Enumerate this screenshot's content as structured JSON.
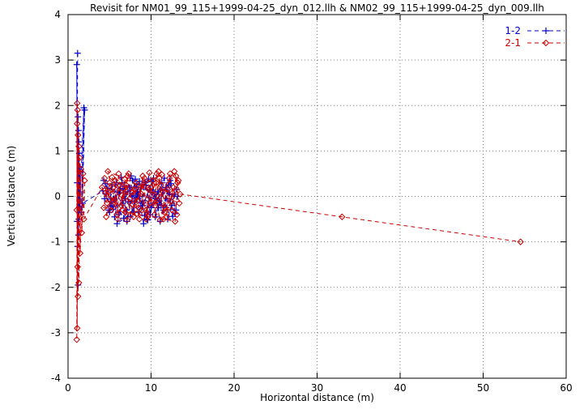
{
  "chart_data": {
    "type": "scatter",
    "title": "Revisit for NM01_99_115+1999-04-25_dyn_012.llh & NM02_99_115+1999-04-25_dyn_009.llh",
    "xlabel": "Horizontal distance (m)",
    "ylabel": "Vertical distance (m)",
    "xlim": [
      0,
      60
    ],
    "ylim": [
      -4,
      4
    ],
    "xticks": [
      0,
      10,
      20,
      30,
      40,
      50,
      60
    ],
    "yticks": [
      -4,
      -3,
      -2,
      -1,
      0,
      1,
      2,
      3,
      4
    ],
    "grid": true,
    "legend_position": "top-right",
    "series": [
      {
        "name": "1-2",
        "color": "#0000cc",
        "marker": "plus",
        "linestyle": "dashed",
        "points": [
          [
            1.15,
            3.15
          ],
          [
            1.1,
            0.3
          ],
          [
            1.05,
            2.9
          ],
          [
            1.1,
            -0.55
          ],
          [
            1.2,
            1.75
          ],
          [
            1.15,
            -1.1
          ],
          [
            1.25,
            1.45
          ],
          [
            1.2,
            -1.95
          ],
          [
            1.3,
            1.2
          ],
          [
            1.25,
            -0.85
          ],
          [
            1.35,
            0.95
          ],
          [
            1.3,
            -0.5
          ],
          [
            1.45,
            0.65
          ],
          [
            1.4,
            -0.3
          ],
          [
            1.9,
            1.95
          ],
          [
            1.6,
            -0.35
          ],
          [
            2.0,
            1.9
          ],
          [
            1.75,
            -0.15
          ],
          [
            4.2,
            0.12
          ],
          [
            5.1,
            -0.22
          ],
          [
            4.6,
            0.05
          ],
          [
            5.8,
            0.3
          ],
          [
            5.0,
            -0.35
          ],
          [
            6.3,
            0.18
          ],
          [
            5.5,
            -0.05
          ],
          [
            6.8,
            0.22
          ],
          [
            6.1,
            -0.4
          ],
          [
            7.2,
            0.1
          ],
          [
            6.6,
            -0.15
          ],
          [
            7.8,
            0.35
          ],
          [
            7.0,
            -0.3
          ],
          [
            8.2,
            0.05
          ],
          [
            7.5,
            -0.45
          ],
          [
            8.8,
            0.2
          ],
          [
            8.0,
            -0.1
          ],
          [
            9.3,
            0.3
          ],
          [
            8.5,
            -0.35
          ],
          [
            9.8,
            0.15
          ],
          [
            9.0,
            -0.2
          ],
          [
            10.3,
            0.4
          ],
          [
            9.5,
            -0.5
          ],
          [
            10.8,
            0.1
          ],
          [
            10.0,
            -0.25
          ],
          [
            11.3,
            0.3
          ],
          [
            10.5,
            -0.45
          ],
          [
            11.8,
            0.2
          ],
          [
            11.0,
            -0.1
          ],
          [
            12.3,
            0.35
          ],
          [
            11.5,
            -0.3
          ],
          [
            12.8,
            0.05
          ],
          [
            12.0,
            -0.5
          ],
          [
            13.1,
            0.15
          ],
          [
            12.5,
            -0.2
          ],
          [
            4.4,
            -0.05
          ],
          [
            5.3,
            0.25
          ],
          [
            4.9,
            -0.3
          ],
          [
            6.0,
            0.1
          ],
          [
            5.6,
            -0.45
          ],
          [
            6.5,
            0.3
          ],
          [
            6.9,
            -0.05
          ],
          [
            7.4,
            0.2
          ],
          [
            7.9,
            -0.35
          ],
          [
            8.4,
            0.1
          ],
          [
            8.9,
            -0.15
          ],
          [
            9.4,
            0.25
          ],
          [
            9.9,
            -0.4
          ],
          [
            10.4,
            0.05
          ],
          [
            10.9,
            -0.25
          ],
          [
            11.4,
            0.15
          ],
          [
            11.9,
            -0.05
          ],
          [
            12.4,
            0.28
          ],
          [
            12.9,
            -0.38
          ],
          [
            13.2,
            0.0
          ],
          [
            4.3,
            0.35
          ],
          [
            5.2,
            -0.12
          ],
          [
            6.4,
            0.42
          ],
          [
            7.1,
            -0.55
          ],
          [
            8.1,
            0.38
          ],
          [
            9.1,
            -0.6
          ],
          [
            10.1,
            0.32
          ],
          [
            11.1,
            -0.55
          ],
          [
            12.1,
            0.25
          ],
          [
            5.9,
            -0.6
          ],
          [
            7.6,
            0.45
          ],
          [
            9.6,
            -0.52
          ],
          [
            11.6,
            0.4
          ],
          [
            13.0,
            -0.3
          ],
          [
            4.7,
            0.18
          ],
          [
            5.4,
            -0.28
          ],
          [
            6.2,
            0.08
          ],
          [
            7.3,
            -0.12
          ],
          [
            8.3,
            0.26
          ],
          [
            9.2,
            -0.42
          ],
          [
            10.2,
            0.14
          ],
          [
            11.2,
            -0.2
          ],
          [
            12.2,
            0.06
          ],
          [
            12.6,
            -0.44
          ],
          [
            8.6,
            0.33
          ],
          [
            6.7,
            -0.48
          ],
          [
            4.5,
            0.28
          ],
          [
            10.6,
            -0.05
          ],
          [
            7.7,
            0.02
          ],
          [
            9.7,
            0.38
          ]
        ]
      },
      {
        "name": "2-1",
        "color": "#cc0000",
        "marker": "diamond",
        "linestyle": "dashed",
        "points": [
          [
            1.1,
            2.05
          ],
          [
            1.05,
            -0.3
          ],
          [
            1.15,
            1.9
          ],
          [
            1.05,
            -3.15
          ],
          [
            1.1,
            1.6
          ],
          [
            1.1,
            -2.9
          ],
          [
            1.2,
            1.35
          ],
          [
            1.15,
            -1.55
          ],
          [
            1.3,
            1.1
          ],
          [
            1.2,
            -2.2
          ],
          [
            1.4,
            0.85
          ],
          [
            1.3,
            -1.9
          ],
          [
            1.55,
            0.6
          ],
          [
            1.45,
            -1.25
          ],
          [
            1.8,
            0.5
          ],
          [
            1.65,
            -0.8
          ],
          [
            2.0,
            0.35
          ],
          [
            1.9,
            -0.5
          ],
          [
            4.1,
            0.2
          ],
          [
            4.7,
            -0.15
          ],
          [
            4.4,
            0.4
          ],
          [
            5.2,
            -0.3
          ],
          [
            4.9,
            0.1
          ],
          [
            5.7,
            0.35
          ],
          [
            5.4,
            -0.1
          ],
          [
            6.2,
            0.25
          ],
          [
            5.9,
            -0.4
          ],
          [
            6.7,
            0.15
          ],
          [
            6.4,
            -0.2
          ],
          [
            7.2,
            0.45
          ],
          [
            6.9,
            -0.35
          ],
          [
            7.7,
            0.1
          ],
          [
            7.4,
            -0.05
          ],
          [
            8.2,
            0.3
          ],
          [
            7.9,
            -0.45
          ],
          [
            8.7,
            0.2
          ],
          [
            8.4,
            -0.1
          ],
          [
            9.2,
            0.4
          ],
          [
            8.9,
            -0.3
          ],
          [
            9.7,
            0.15
          ],
          [
            9.4,
            -0.5
          ],
          [
            10.2,
            0.35
          ],
          [
            9.9,
            -0.15
          ],
          [
            10.7,
            0.5
          ],
          [
            10.4,
            -0.4
          ],
          [
            11.2,
            0.25
          ],
          [
            10.9,
            0.55
          ],
          [
            11.7,
            -0.25
          ],
          [
            11.4,
            0.1
          ],
          [
            12.2,
            0.4
          ],
          [
            11.9,
            -0.45
          ],
          [
            12.7,
            0.2
          ],
          [
            12.4,
            -0.1
          ],
          [
            13.2,
            0.3
          ],
          [
            12.9,
            -0.55
          ],
          [
            4.3,
            -0.25
          ],
          [
            5.0,
            0.3
          ],
          [
            4.6,
            -0.45
          ],
          [
            5.5,
            0.2
          ],
          [
            5.8,
            -0.2
          ],
          [
            6.1,
            0.5
          ],
          [
            6.6,
            -0.3
          ],
          [
            7.0,
            0.25
          ],
          [
            7.5,
            -0.4
          ],
          [
            8.0,
            0.15
          ],
          [
            8.5,
            -0.25
          ],
          [
            9.0,
            0.45
          ],
          [
            9.5,
            -0.35
          ],
          [
            10.0,
            0.2
          ],
          [
            10.5,
            -0.2
          ],
          [
            11.0,
            0.4
          ],
          [
            11.5,
            -0.5
          ],
          [
            12.0,
            0.15
          ],
          [
            12.5,
            -0.3
          ],
          [
            13.0,
            0.45
          ],
          [
            13.4,
            -0.15
          ],
          [
            4.8,
            0.55
          ],
          [
            6.0,
            -0.5
          ],
          [
            7.3,
            0.5
          ],
          [
            8.6,
            -0.5
          ],
          [
            9.8,
            0.52
          ],
          [
            11.1,
            -0.52
          ],
          [
            12.3,
            0.5
          ],
          [
            13.3,
            0.35
          ],
          [
            4.5,
            0.08
          ],
          [
            5.6,
            -0.08
          ],
          [
            6.8,
            0.38
          ],
          [
            7.8,
            -0.18
          ],
          [
            8.8,
            0.06
          ],
          [
            9.6,
            -0.44
          ],
          [
            10.6,
            0.3
          ],
          [
            11.6,
            -0.35
          ],
          [
            12.6,
            0.08
          ],
          [
            13.1,
            -0.4
          ],
          [
            5.3,
            0.42
          ],
          [
            7.1,
            -0.52
          ],
          [
            9.1,
            0.28
          ],
          [
            11.3,
            0.48
          ],
          [
            6.5,
            0.02
          ],
          [
            8.3,
            -0.38
          ],
          [
            10.8,
            -0.08
          ],
          [
            12.8,
            0.55
          ],
          [
            13.5,
            0.05
          ],
          [
            33.0,
            -0.45
          ],
          [
            54.5,
            -1.0
          ]
        ]
      }
    ]
  }
}
